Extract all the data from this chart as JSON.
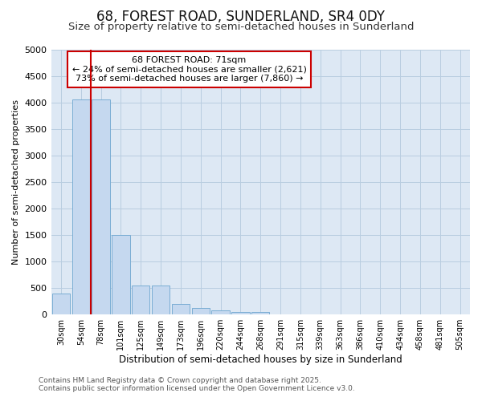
{
  "title": "68, FOREST ROAD, SUNDERLAND, SR4 0DY",
  "subtitle": "Size of property relative to semi-detached houses in Sunderland",
  "xlabel": "Distribution of semi-detached houses by size in Sunderland",
  "ylabel": "Number of semi-detached properties",
  "footer_line1": "Contains HM Land Registry data © Crown copyright and database right 2025.",
  "footer_line2": "Contains public sector information licensed under the Open Government Licence v3.0.",
  "categories": [
    "30sqm",
    "54sqm",
    "78sqm",
    "101sqm",
    "125sqm",
    "149sqm",
    "173sqm",
    "196sqm",
    "220sqm",
    "244sqm",
    "268sqm",
    "291sqm",
    "315sqm",
    "339sqm",
    "363sqm",
    "386sqm",
    "410sqm",
    "434sqm",
    "458sqm",
    "481sqm",
    "505sqm"
  ],
  "values": [
    400,
    4050,
    4050,
    1500,
    550,
    550,
    200,
    120,
    80,
    50,
    50,
    0,
    0,
    0,
    0,
    0,
    0,
    0,
    0,
    0,
    0
  ],
  "bar_color": "#c5d8ef",
  "bar_edge_color": "#7aadd4",
  "plot_bg_color": "#dde8f4",
  "figure_bg_color": "#ffffff",
  "grid_color": "#b8cde0",
  "red_line_x": 2.0,
  "annotation_line1": "68 FOREST ROAD: 71sqm",
  "annotation_line2": "← 24% of semi-detached houses are smaller (2,621)",
  "annotation_line3": "73% of semi-detached houses are larger (7,860) →",
  "annotation_box_color": "#ffffff",
  "annotation_border_color": "#cc0000",
  "ylim": [
    0,
    5000
  ],
  "yticks": [
    0,
    500,
    1000,
    1500,
    2000,
    2500,
    3000,
    3500,
    4000,
    4500,
    5000
  ],
  "title_fontsize": 12,
  "subtitle_fontsize": 9.5
}
